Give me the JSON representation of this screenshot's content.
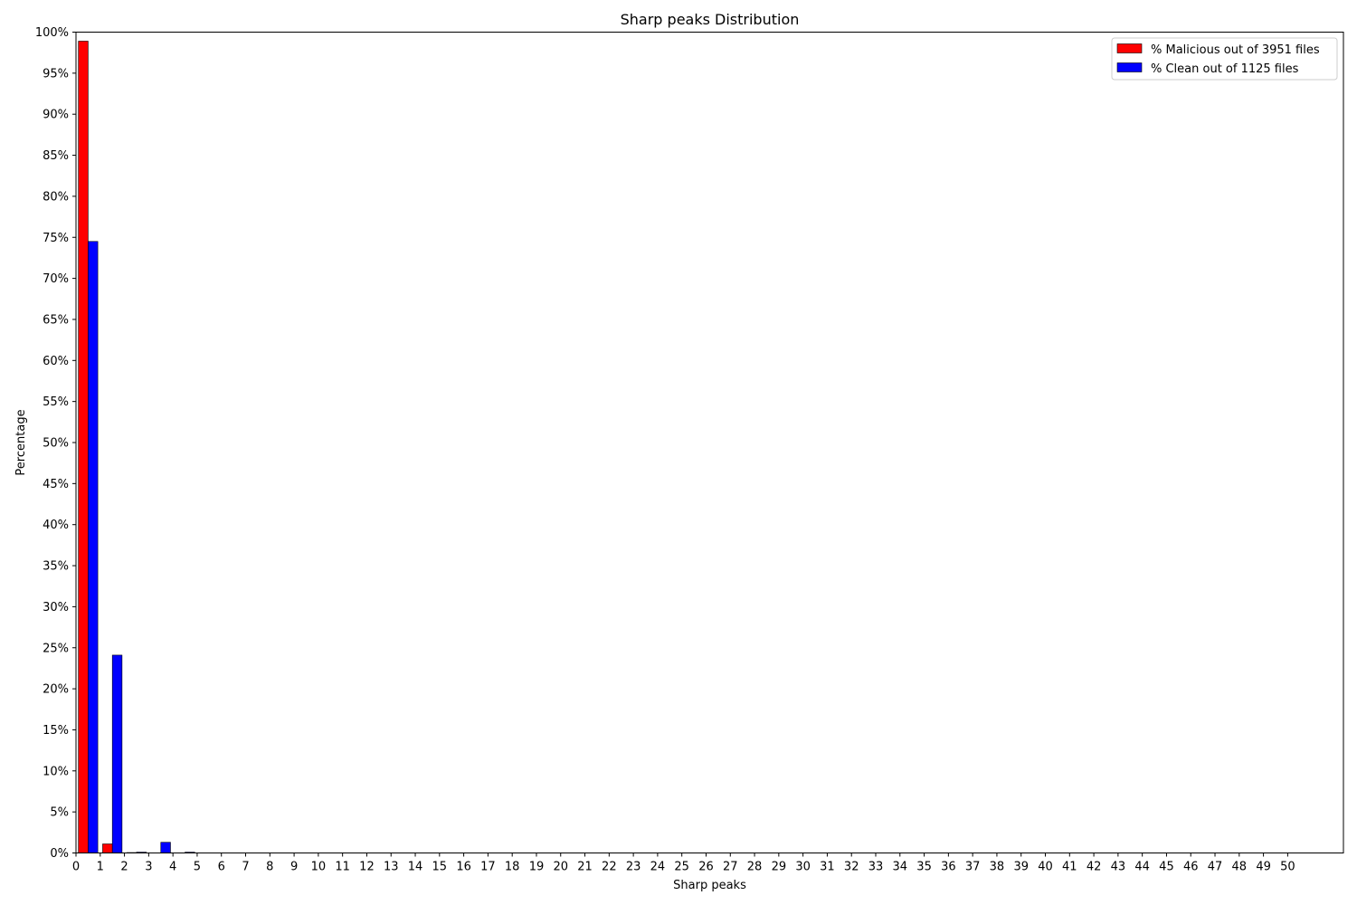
{
  "chart_data": {
    "type": "bar",
    "title": "Sharp peaks Distribution",
    "xlabel": "Sharp peaks",
    "ylabel": "Percentage",
    "ylim": [
      0,
      100
    ],
    "xlim": [
      0,
      52.3
    ],
    "grid": false,
    "legend_position": "top-right",
    "x_ticks": [
      "0",
      "1",
      "2",
      "3",
      "4",
      "5",
      "6",
      "7",
      "8",
      "9",
      "10",
      "11",
      "12",
      "13",
      "14",
      "15",
      "16",
      "17",
      "18",
      "19",
      "20",
      "21",
      "22",
      "23",
      "24",
      "25",
      "26",
      "27",
      "28",
      "29",
      "30",
      "31",
      "32",
      "33",
      "34",
      "35",
      "36",
      "37",
      "38",
      "39",
      "40",
      "41",
      "42",
      "43",
      "44",
      "45",
      "46",
      "47",
      "48",
      "49",
      "50"
    ],
    "y_ticks": [
      "0%",
      "5%",
      "10%",
      "15%",
      "20%",
      "25%",
      "30%",
      "35%",
      "40%",
      "45%",
      "50%",
      "55%",
      "60%",
      "65%",
      "70%",
      "75%",
      "80%",
      "85%",
      "90%",
      "95%",
      "100%"
    ],
    "categories": [
      0,
      1,
      2,
      3,
      4
    ],
    "series": [
      {
        "name": "% Malicious out of 3951 files",
        "color": "#ff0000",
        "values": [
          98.9,
          1.1,
          0.05,
          0.0,
          0.0
        ]
      },
      {
        "name": "% Clean out of 1125 files",
        "color": "#0000ff",
        "values": [
          74.5,
          24.1,
          0.1,
          1.3,
          0.1
        ]
      }
    ]
  }
}
